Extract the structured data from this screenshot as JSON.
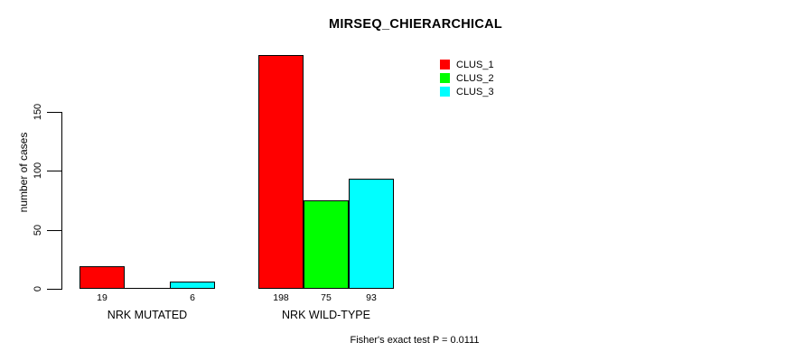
{
  "chart_data": {
    "type": "bar",
    "title": "MIRSEQ_CHIERARCHICAL",
    "ylabel": "number of cases",
    "xlabel": "",
    "categories": [
      "NRK MUTATED",
      "NRK WILD-TYPE"
    ],
    "series": [
      {
        "name": "CLUS_1",
        "color": "#FF0000",
        "values": [
          19,
          198
        ]
      },
      {
        "name": "CLUS_2",
        "color": "#00FF00",
        "values": [
          0,
          75
        ]
      },
      {
        "name": "CLUS_3",
        "color": "#00FFFF",
        "values": [
          6,
          93
        ]
      }
    ],
    "bar_labels": [
      [
        "19",
        "",
        "6"
      ],
      [
        "198",
        "75",
        "93"
      ]
    ],
    "yticks": [
      0,
      50,
      100,
      150
    ],
    "ylim": [
      0,
      150
    ],
    "grid": false,
    "legend_position": "top-right",
    "bar_border_color": "#000000",
    "annotation": "Fisher's exact test P = 0.0111"
  }
}
